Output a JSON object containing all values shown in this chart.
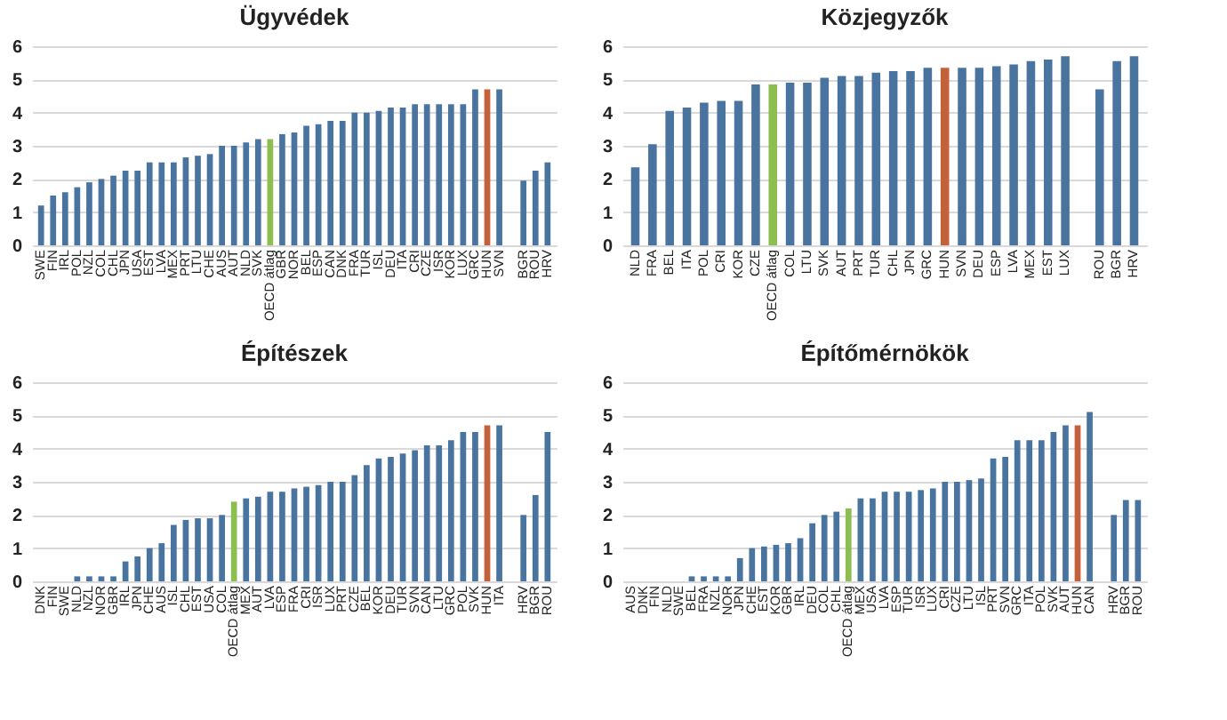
{
  "chart_data": [
    {
      "type": "bar",
      "title": "Ügyvédek",
      "ylim": [
        0,
        6
      ],
      "yticks": [
        0,
        1,
        2,
        3,
        4,
        5,
        6
      ],
      "grid": "y",
      "categories": [
        "SWE",
        "FIN",
        "IRL",
        "POL",
        "NZL",
        "COL",
        "CHL",
        "JPN",
        "USA",
        "EST",
        "LVA",
        "MEX",
        "PRT",
        "LTU",
        "CHE",
        "AUS",
        "AUT",
        "NLD",
        "SVK",
        "OECD átlag",
        "GBR",
        "NOR",
        "BEL",
        "ESP",
        "CAN",
        "DNK",
        "FRA",
        "TUR",
        "ISL",
        "DEU",
        "ITA",
        "CRI",
        "CZE",
        "ISR",
        "KOR",
        "LUX",
        "GRC",
        "HUN",
        "SVN",
        null,
        "BGR",
        "ROU",
        "HRV"
      ],
      "values": [
        1.2,
        1.5,
        1.6,
        1.75,
        1.9,
        2.0,
        2.1,
        2.25,
        2.25,
        2.5,
        2.5,
        2.5,
        2.65,
        2.7,
        2.75,
        3.0,
        3.0,
        3.1,
        3.2,
        3.2,
        3.35,
        3.4,
        3.6,
        3.65,
        3.75,
        3.75,
        4.0,
        4.0,
        4.05,
        4.15,
        4.15,
        4.25,
        4.25,
        4.25,
        4.25,
        4.25,
        4.7,
        4.7,
        4.7,
        null,
        1.95,
        2.25,
        2.5
      ],
      "colors": [
        "#4a74a0",
        "#4a74a0",
        "#4a74a0",
        "#4a74a0",
        "#4a74a0",
        "#4a74a0",
        "#4a74a0",
        "#4a74a0",
        "#4a74a0",
        "#4a74a0",
        "#4a74a0",
        "#4a74a0",
        "#4a74a0",
        "#4a74a0",
        "#4a74a0",
        "#4a74a0",
        "#4a74a0",
        "#4a74a0",
        "#4a74a0",
        "#8cbf4f",
        "#4a74a0",
        "#4a74a0",
        "#4a74a0",
        "#4a74a0",
        "#4a74a0",
        "#4a74a0",
        "#4a74a0",
        "#4a74a0",
        "#4a74a0",
        "#4a74a0",
        "#4a74a0",
        "#4a74a0",
        "#4a74a0",
        "#4a74a0",
        "#4a74a0",
        "#4a74a0",
        "#4a74a0",
        "#c4603a",
        "#4a74a0",
        null,
        "#4a74a0",
        "#4a74a0",
        "#4a74a0"
      ]
    },
    {
      "type": "bar",
      "title": "Közjegyzők",
      "ylim": [
        0,
        6
      ],
      "yticks": [
        0,
        1,
        2,
        3,
        4,
        5,
        6
      ],
      "grid": "y",
      "categories": [
        "NLD",
        "FRA",
        "BEL",
        "ITA",
        "POL",
        "CRI",
        "KOR",
        "CZE",
        "OECD átlag",
        "COL",
        "LTU",
        "SVK",
        "AUT",
        "PRT",
        "TUR",
        "CHL",
        "JPN",
        "GRC",
        "HUN",
        "SVN",
        "DEU",
        "ESP",
        "LVA",
        "MEX",
        "EST",
        "LUX",
        null,
        "ROU",
        "BGR",
        "HRV"
      ],
      "values": [
        2.35,
        3.05,
        4.05,
        4.15,
        4.3,
        4.35,
        4.35,
        4.85,
        4.85,
        4.9,
        4.9,
        5.05,
        5.1,
        5.1,
        5.2,
        5.25,
        5.25,
        5.35,
        5.35,
        5.35,
        5.35,
        5.4,
        5.45,
        5.55,
        5.6,
        5.7,
        null,
        4.7,
        5.55,
        5.7
      ],
      "colors": [
        "#4a74a0",
        "#4a74a0",
        "#4a74a0",
        "#4a74a0",
        "#4a74a0",
        "#4a74a0",
        "#4a74a0",
        "#4a74a0",
        "#8cbf4f",
        "#4a74a0",
        "#4a74a0",
        "#4a74a0",
        "#4a74a0",
        "#4a74a0",
        "#4a74a0",
        "#4a74a0",
        "#4a74a0",
        "#4a74a0",
        "#c4603a",
        "#4a74a0",
        "#4a74a0",
        "#4a74a0",
        "#4a74a0",
        "#4a74a0",
        "#4a74a0",
        "#4a74a0",
        null,
        "#4a74a0",
        "#4a74a0",
        "#4a74a0"
      ]
    },
    {
      "type": "bar",
      "title": "Építészek",
      "ylim": [
        0,
        6
      ],
      "yticks": [
        0,
        1,
        2,
        3,
        4,
        5,
        6
      ],
      "grid": "y",
      "categories": [
        "DNK",
        "FIN",
        "SWE",
        "NLD",
        "NZL",
        "NOR",
        "GBR",
        "IRL",
        "JPN",
        "CHE",
        "AUS",
        "ISL",
        "CHL",
        "EST",
        "USA",
        "COL",
        "OECD átlag",
        "MEX",
        "AUT",
        "LVA",
        "ESP",
        "FRA",
        "CRI",
        "ISR",
        "LUX",
        "PRT",
        "CZE",
        "BEL",
        "KOR",
        "DEU",
        "TUR",
        "SVN",
        "CAN",
        "LTU",
        "GRC",
        "POL",
        "SVK",
        "HUN",
        "ITA",
        null,
        "HRV",
        "BGR",
        "ROU"
      ],
      "values": [
        0,
        0,
        0,
        0.15,
        0.15,
        0.15,
        0.15,
        0.6,
        0.75,
        1.0,
        1.15,
        1.7,
        1.85,
        1.9,
        1.9,
        2.0,
        2.4,
        2.5,
        2.55,
        2.7,
        2.7,
        2.8,
        2.85,
        2.9,
        3.0,
        3.0,
        3.2,
        3.5,
        3.7,
        3.75,
        3.85,
        3.95,
        4.1,
        4.1,
        4.25,
        4.5,
        4.5,
        4.7,
        4.7,
        null,
        2.0,
        2.6,
        4.5
      ],
      "colors": [
        "#4a74a0",
        "#4a74a0",
        "#4a74a0",
        "#4a74a0",
        "#4a74a0",
        "#4a74a0",
        "#4a74a0",
        "#4a74a0",
        "#4a74a0",
        "#4a74a0",
        "#4a74a0",
        "#4a74a0",
        "#4a74a0",
        "#4a74a0",
        "#4a74a0",
        "#4a74a0",
        "#8cbf4f",
        "#4a74a0",
        "#4a74a0",
        "#4a74a0",
        "#4a74a0",
        "#4a74a0",
        "#4a74a0",
        "#4a74a0",
        "#4a74a0",
        "#4a74a0",
        "#4a74a0",
        "#4a74a0",
        "#4a74a0",
        "#4a74a0",
        "#4a74a0",
        "#4a74a0",
        "#4a74a0",
        "#4a74a0",
        "#4a74a0",
        "#4a74a0",
        "#4a74a0",
        "#c4603a",
        "#4a74a0",
        null,
        "#4a74a0",
        "#4a74a0",
        "#4a74a0"
      ]
    },
    {
      "type": "bar",
      "title": "Építőmérnökök",
      "ylim": [
        0,
        6
      ],
      "yticks": [
        0,
        1,
        2,
        3,
        4,
        5,
        6
      ],
      "grid": "y",
      "categories": [
        "AUS",
        "DNK",
        "FIN",
        "NLD",
        "SWE",
        "BEL",
        "FRA",
        "NZL",
        "NOR",
        "JPN",
        "CHE",
        "EST",
        "KOR",
        "GBR",
        "IRL",
        "DEU",
        "COL",
        "CHL",
        "OECD átlag",
        "MEX",
        "USA",
        "LVA",
        "ESP",
        "TUR",
        "ISR",
        "LUX",
        "CRI",
        "CZE",
        "LTU",
        "ISL",
        "PRT",
        "SVN",
        "GRC",
        "ITA",
        "POL",
        "SVK",
        "AUT",
        "HUN",
        "CAN",
        null,
        "HRV",
        "BGR",
        "ROU"
      ],
      "values": [
        0,
        0,
        0,
        0,
        0,
        0.15,
        0.15,
        0.15,
        0.15,
        0.7,
        1.0,
        1.05,
        1.1,
        1.15,
        1.3,
        1.75,
        2.0,
        2.1,
        2.2,
        2.5,
        2.5,
        2.7,
        2.7,
        2.7,
        2.75,
        2.8,
        3.0,
        3.0,
        3.05,
        3.1,
        3.7,
        3.75,
        4.25,
        4.25,
        4.25,
        4.5,
        4.7,
        4.7,
        5.1,
        null,
        2.0,
        2.45,
        2.45
      ],
      "colors": [
        "#4a74a0",
        "#4a74a0",
        "#4a74a0",
        "#4a74a0",
        "#4a74a0",
        "#4a74a0",
        "#4a74a0",
        "#4a74a0",
        "#4a74a0",
        "#4a74a0",
        "#4a74a0",
        "#4a74a0",
        "#4a74a0",
        "#4a74a0",
        "#4a74a0",
        "#4a74a0",
        "#4a74a0",
        "#4a74a0",
        "#8cbf4f",
        "#4a74a0",
        "#4a74a0",
        "#4a74a0",
        "#4a74a0",
        "#4a74a0",
        "#4a74a0",
        "#4a74a0",
        "#4a74a0",
        "#4a74a0",
        "#4a74a0",
        "#4a74a0",
        "#4a74a0",
        "#4a74a0",
        "#4a74a0",
        "#4a74a0",
        "#4a74a0",
        "#4a74a0",
        "#4a74a0",
        "#c4603a",
        "#4a74a0",
        null,
        "#4a74a0",
        "#4a74a0",
        "#4a74a0"
      ]
    }
  ]
}
